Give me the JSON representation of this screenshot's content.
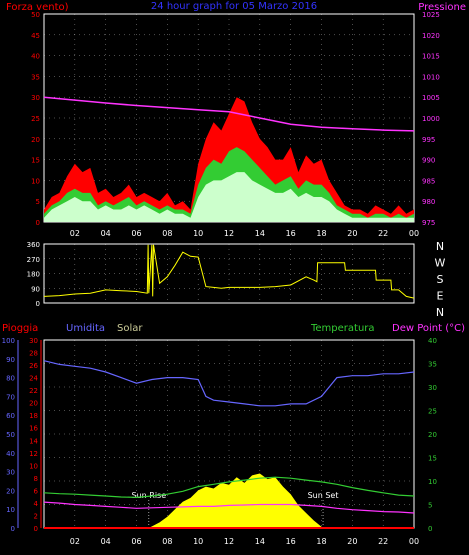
{
  "chart_data": [
    {
      "type": "line",
      "title": "24 hour graph for 05 Marzo 2016",
      "left_axis_label": "Forza vento)",
      "right_axis_label": "Pressione",
      "x_ticks": [
        "02",
        "04",
        "06",
        "08",
        "10",
        "12",
        "14",
        "16",
        "18",
        "20",
        "22",
        "00"
      ],
      "y_left_ticks": [
        0,
        5,
        10,
        15,
        20,
        25,
        30,
        35,
        40,
        45,
        50
      ],
      "y_left_range": [
        0,
        50
      ],
      "y_right_ticks": [
        975,
        980,
        985,
        990,
        995,
        1000,
        1005,
        1010,
        1015,
        1020,
        1025
      ],
      "y_right_range": [
        975,
        1025
      ],
      "colors": {
        "gust": "#ff0000",
        "average": "#33cc33",
        "wind": "#ccffcc",
        "pressure": "#ff33ff",
        "axis_left": "#ff0000",
        "axis_right": "#ff33ff"
      },
      "series": [
        {
          "role": "gust",
          "x": [
            0,
            0.5,
            1,
            1.5,
            2,
            2.5,
            3,
            3.5,
            4,
            4.5,
            5,
            5.5,
            6,
            6.5,
            7,
            7.5,
            8,
            8.5,
            9,
            9.5,
            10,
            10.5,
            11,
            11.5,
            12,
            12.5,
            13,
            13.5,
            14,
            14.5,
            15,
            15.5,
            16,
            16.5,
            17,
            17.5,
            18,
            18.5,
            19,
            19.5,
            20,
            20.5,
            21,
            21.5,
            22,
            22.5,
            23,
            23.5,
            24
          ],
          "values": [
            3,
            6,
            7,
            11,
            14,
            12,
            13,
            7,
            8,
            6,
            7,
            9,
            6,
            7,
            6,
            5,
            7,
            4,
            5,
            3,
            14,
            20,
            24,
            22,
            26,
            30,
            29,
            24,
            20,
            18,
            15,
            15,
            18,
            12,
            16,
            14,
            15,
            10,
            7,
            4,
            3,
            3,
            2,
            4,
            3,
            2,
            4,
            2,
            3
          ]
        },
        {
          "role": "average",
          "x": [
            0,
            0.5,
            1,
            1.5,
            2,
            2.5,
            3,
            3.5,
            4,
            4.5,
            5,
            5.5,
            6,
            6.5,
            7,
            7.5,
            8,
            8.5,
            9,
            9.5,
            10,
            10.5,
            11,
            11.5,
            12,
            12.5,
            13,
            13.5,
            14,
            14.5,
            15,
            15.5,
            16,
            16.5,
            17,
            17.5,
            18,
            18.5,
            19,
            19.5,
            20,
            20.5,
            21,
            21.5,
            22,
            22.5,
            23,
            23.5,
            24
          ],
          "values": [
            2,
            4,
            5,
            7,
            8,
            7,
            7,
            4,
            5,
            4,
            5,
            6,
            4,
            5,
            4,
            3,
            4,
            3,
            3,
            2,
            9,
            13,
            15,
            14,
            17,
            18,
            17,
            15,
            13,
            11,
            9,
            10,
            11,
            8,
            10,
            9,
            9,
            7,
            4,
            3,
            2,
            2,
            1,
            2,
            2,
            1,
            2,
            1,
            2
          ]
        },
        {
          "role": "wind",
          "x": [
            0,
            0.5,
            1,
            1.5,
            2,
            2.5,
            3,
            3.5,
            4,
            4.5,
            5,
            5.5,
            6,
            6.5,
            7,
            7.5,
            8,
            8.5,
            9,
            9.5,
            10,
            10.5,
            11,
            11.5,
            12,
            12.5,
            13,
            13.5,
            14,
            14.5,
            15,
            15.5,
            16,
            16.5,
            17,
            17.5,
            18,
            18.5,
            19,
            19.5,
            20,
            20.5,
            21,
            21.5,
            22,
            22.5,
            23,
            23.5,
            24
          ],
          "values": [
            1,
            3,
            4,
            5,
            6,
            5,
            5,
            3,
            4,
            3,
            3,
            4,
            3,
            4,
            3,
            2,
            3,
            2,
            2,
            1,
            6,
            9,
            10,
            10,
            11,
            12,
            12,
            10,
            9,
            8,
            7,
            7,
            8,
            6,
            7,
            6,
            6,
            5,
            3,
            2,
            1,
            1,
            1,
            1,
            1,
            1,
            1,
            1,
            1
          ]
        },
        {
          "role": "pressure",
          "x": [
            0,
            2,
            4,
            6,
            8,
            10,
            12,
            14,
            16,
            18,
            20,
            22,
            24
          ],
          "values": [
            1005,
            1004.3,
            1003.6,
            1003,
            1002.5,
            1002,
            1001.5,
            1000,
            998.5,
            997.8,
            997.4,
            997.1,
            996.9
          ]
        }
      ]
    },
    {
      "type": "line",
      "right_axis_labels": [
        "N",
        "W",
        "S",
        "E",
        "N"
      ],
      "y_ticks": [
        0,
        90,
        180,
        270,
        360
      ],
      "y_range": [
        0,
        360
      ],
      "x_ticks": [
        "02",
        "04",
        "06",
        "08",
        "10",
        "12",
        "14",
        "16",
        "18",
        "20",
        "22",
        "00"
      ],
      "colors": {
        "direction": "#ffff00",
        "axis": "#ffffff"
      },
      "series": [
        {
          "role": "direction",
          "x": [
            0,
            1,
            2,
            3,
            4,
            5,
            6,
            6.7,
            6.75,
            6.8,
            7,
            7.05,
            7.1,
            7.5,
            8,
            8.5,
            9,
            9.5,
            10,
            10.5,
            11,
            11.5,
            12,
            13,
            14,
            15,
            16,
            17,
            17.5,
            17.7,
            17.75,
            18,
            19,
            19.5,
            19.55,
            20,
            21,
            21.5,
            21.55,
            22,
            22.5,
            22.55,
            23,
            23.5,
            24
          ],
          "values": [
            40,
            45,
            55,
            60,
            80,
            75,
            70,
            60,
            355,
            60,
            355,
            40,
            355,
            120,
            160,
            230,
            310,
            285,
            280,
            100,
            95,
            90,
            95,
            95,
            95,
            100,
            110,
            160,
            140,
            130,
            245,
            245,
            245,
            245,
            200,
            200,
            200,
            200,
            140,
            140,
            140,
            80,
            80,
            40,
            30
          ]
        }
      ]
    },
    {
      "type": "area",
      "legend": [
        "Pioggia",
        "Umidita",
        "Solar",
        "Temperatura",
        "Dew Point (°C)"
      ],
      "annotations": [
        "Sun Rise",
        "Sun Set"
      ],
      "x_ticks": [
        "02",
        "04",
        "06",
        "08",
        "10",
        "12",
        "14",
        "16",
        "18",
        "20",
        "22",
        "00"
      ],
      "y_left_humidity_ticks": [
        0,
        10,
        20,
        30,
        40,
        50,
        60,
        70,
        80,
        90,
        100
      ],
      "y_left_rain_ticks": [
        0,
        2,
        4,
        6,
        8,
        10,
        12,
        14,
        16,
        18,
        20,
        22,
        24,
        26,
        28,
        30
      ],
      "y_right_ticks": [
        0,
        5,
        10,
        15,
        20,
        25,
        30,
        35,
        40
      ],
      "colors": {
        "humidity": "#6666ff",
        "temperature": "#33cc33",
        "dewpoint": "#ff33ff",
        "solar": "#ffff00",
        "rain": "#ff0000",
        "rain_axis": "#ff0000",
        "humidity_axis": "#6666ff",
        "temp_axis": "#33cc33"
      },
      "sun_rise_hour": 6.8,
      "sun_set_hour": 18.1,
      "series": [
        {
          "role": "humidity",
          "x": [
            0,
            1,
            2,
            3,
            4,
            5,
            6,
            7,
            8,
            9,
            10,
            10.5,
            11,
            12,
            13,
            14,
            15,
            16,
            17,
            18,
            19,
            20,
            21,
            22,
            23,
            24
          ],
          "values": [
            89,
            87,
            86,
            85,
            83,
            80,
            77,
            79,
            80,
            80,
            79,
            70,
            68,
            67,
            66,
            65,
            65,
            66,
            66,
            70,
            80,
            81,
            81,
            82,
            82,
            83
          ]
        },
        {
          "role": "temperature",
          "x": [
            0,
            1,
            2,
            3,
            4,
            5,
            6,
            7,
            8,
            9,
            10,
            11,
            12,
            13,
            14,
            15,
            16,
            17,
            18,
            19,
            20,
            21,
            22,
            23,
            24
          ],
          "values": [
            7.5,
            7.3,
            7.2,
            7.0,
            6.8,
            6.6,
            6.5,
            6.8,
            7.2,
            7.8,
            8.8,
            9.3,
            9.8,
            10.2,
            10.6,
            10.8,
            10.6,
            10.2,
            9.8,
            9.3,
            8.6,
            8.0,
            7.5,
            7.0,
            6.8
          ]
        },
        {
          "role": "dewpoint",
          "x": [
            0,
            1,
            2,
            3,
            4,
            5,
            6,
            7,
            8,
            9,
            10,
            11,
            12,
            13,
            14,
            15,
            16,
            17,
            18,
            19,
            20,
            21,
            22,
            23,
            24
          ],
          "values": [
            5.5,
            5.3,
            5.0,
            4.8,
            4.6,
            4.4,
            4.2,
            4.3,
            4.4,
            4.5,
            4.6,
            4.6,
            4.8,
            4.9,
            5.0,
            5.0,
            5.0,
            4.8,
            4.6,
            4.2,
            3.9,
            3.7,
            3.5,
            3.4,
            3.2
          ]
        },
        {
          "role": "solar",
          "x": [
            6.8,
            7.5,
            8,
            8.5,
            9,
            9.5,
            10,
            10.5,
            11,
            11.5,
            12,
            12.5,
            13,
            13.5,
            14,
            14.5,
            15,
            15.5,
            16,
            16.5,
            17,
            17.5,
            18.1
          ],
          "values": [
            0,
            3,
            6,
            10,
            14,
            16,
            20,
            22,
            21,
            24,
            23,
            27,
            24,
            28,
            29,
            26,
            27,
            22,
            18,
            12,
            8,
            4,
            0
          ]
        },
        {
          "role": "rain",
          "x": [
            0,
            24
          ],
          "values": [
            0,
            0
          ]
        }
      ]
    }
  ]
}
